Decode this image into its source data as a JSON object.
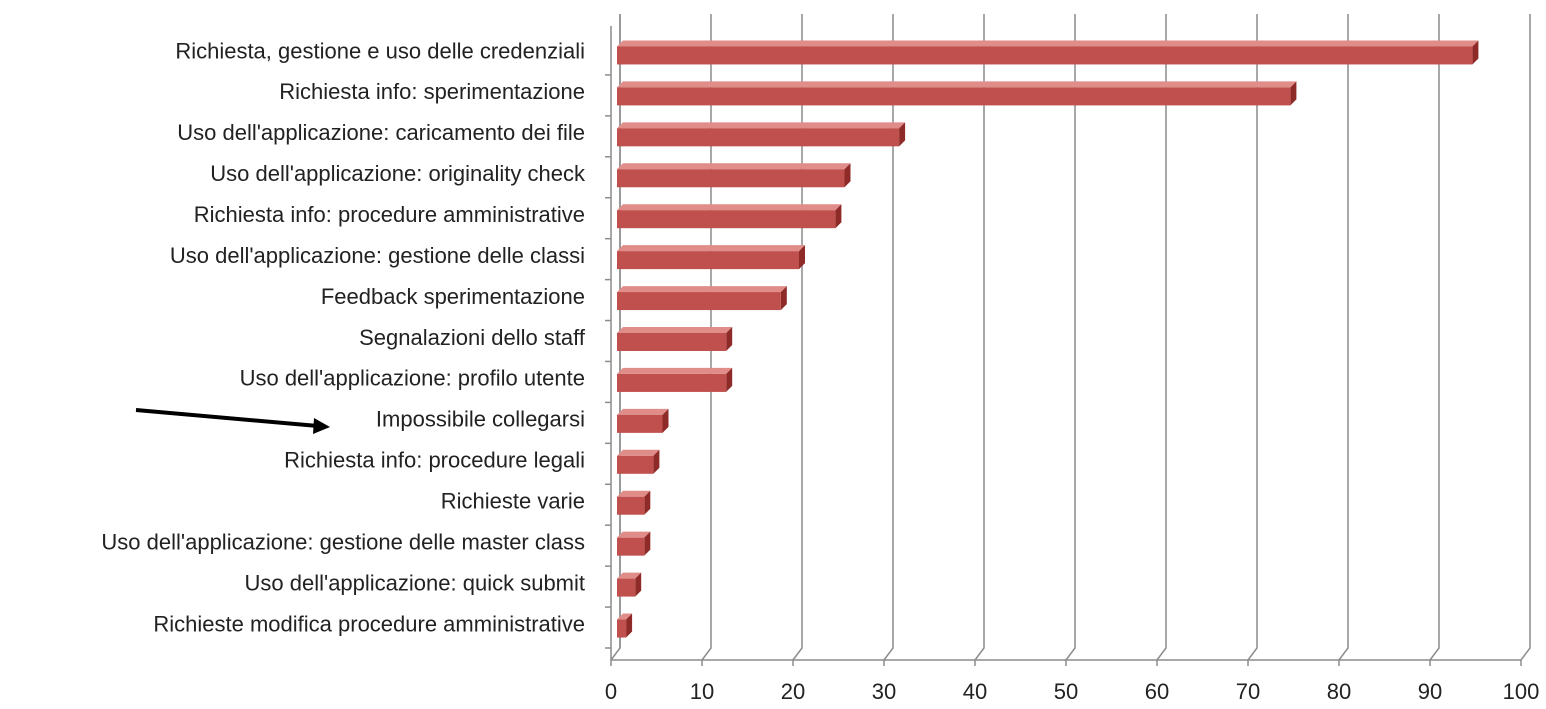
{
  "chart_data": {
    "type": "bar",
    "orientation": "horizontal",
    "three_d": true,
    "categories": [
      "Richiesta, gestione e uso delle credenziali",
      "Richiesta info: sperimentazione",
      "Uso dell'applicazione: caricamento dei file",
      "Uso dell'applicazione: originality check",
      "Richiesta info: procedure amministrative",
      "Uso dell'applicazione: gestione delle classi",
      "Feedback sperimentazione",
      "Segnalazioni dello staff",
      "Uso dell'applicazione: profilo utente",
      "Impossibile collegarsi",
      "Richiesta info: procedure legali",
      "Richieste varie",
      "Uso dell'applicazione: gestione delle master class",
      "Uso dell'applicazione: quick submit",
      "Richieste modifica procedure amministrative"
    ],
    "values": [
      94,
      74,
      31,
      25,
      24,
      20,
      18,
      12,
      12,
      5,
      4,
      3,
      3,
      2,
      1
    ],
    "color": "#c0504d",
    "xlim": [
      0,
      100
    ],
    "xticks": [
      0,
      10,
      20,
      30,
      40,
      50,
      60,
      70,
      80,
      90,
      100
    ],
    "grid": true
  }
}
